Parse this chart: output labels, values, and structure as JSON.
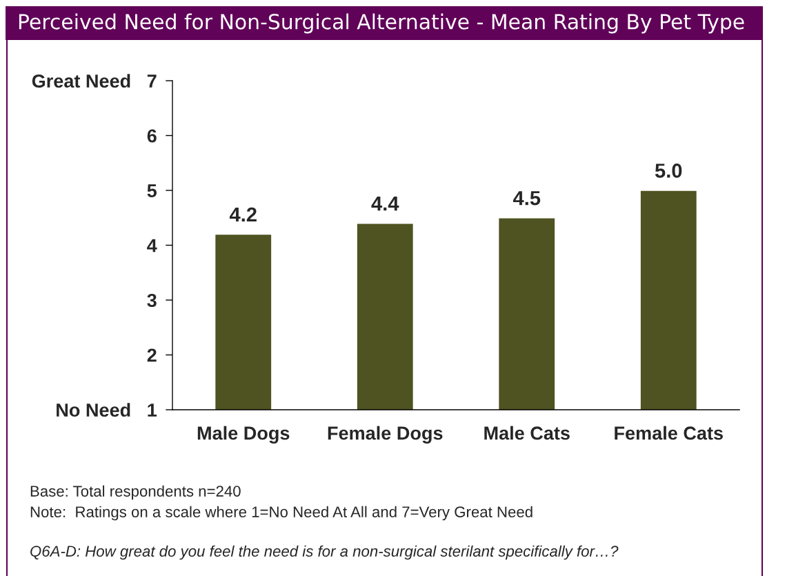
{
  "chart_data": {
    "type": "bar",
    "title": "Perceived Need for Non-Surgical Alternative - Mean Rating By Pet Type",
    "categories": [
      "Male Dogs",
      "Female Dogs",
      "Male Cats",
      "Female Cats"
    ],
    "values": [
      4.2,
      4.4,
      4.5,
      5.0
    ],
    "color": "#4f5321",
    "value_labels": [
      "4.2",
      "4.4",
      "4.5",
      "5.0"
    ],
    "ylim": [
      1,
      7
    ],
    "yticks": [
      {
        "value": 1,
        "label": "No Need   1"
      },
      2,
      3,
      4,
      5,
      6,
      {
        "value": 7,
        "label": "Great Need   7"
      }
    ],
    "annotations": [
      "Base: Total respondents n=240",
      "Note:  Ratings on a scale where 1=No Need At All and 7=Very Great Need",
      "Q6A-D: How great do you feel the need is for a non-surgical sterilant specifically for…?"
    ]
  }
}
